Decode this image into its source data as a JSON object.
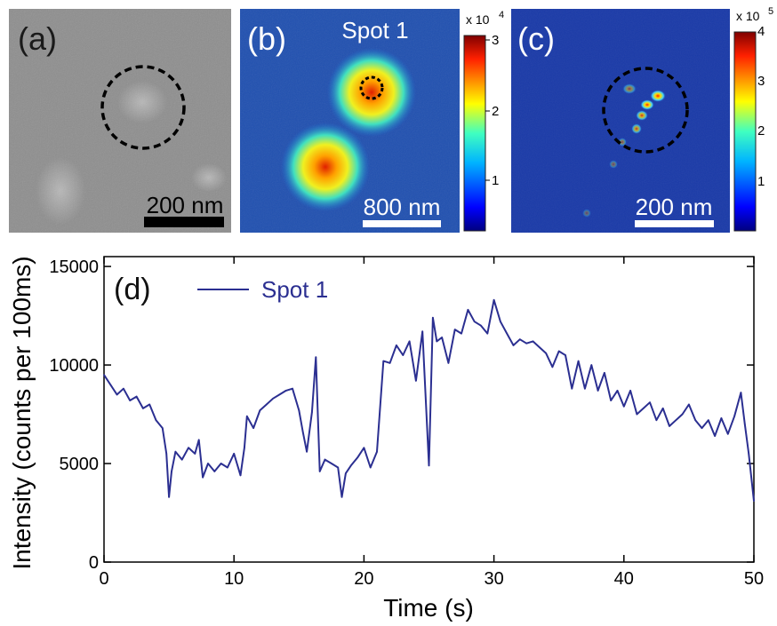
{
  "panels": {
    "a": {
      "label": "(a)",
      "scalebar": "200 nm"
    },
    "b": {
      "label": "(b)",
      "title": "Spot 1",
      "scalebar": "800 nm",
      "colorbar": {
        "exponent_base": "x 10",
        "exponent": "4",
        "ticks": [
          "1",
          "2",
          "3"
        ]
      }
    },
    "c": {
      "label": "(c)",
      "scalebar": "200 nm",
      "colorbar": {
        "exponent_base": "x 10",
        "exponent": "5",
        "ticks": [
          "1",
          "2",
          "3",
          "4"
        ]
      }
    }
  },
  "colors": {
    "trace": "#2b2f91",
    "dashed_circle": "#000000",
    "colormap": "jet"
  },
  "chart_data": {
    "type": "line",
    "panel_label": "(d)",
    "xlabel": "Time (s)",
    "ylabel": "Intensity (counts per 100ms)",
    "xlim": [
      0,
      50
    ],
    "ylim": [
      0,
      15500
    ],
    "xticks": [
      0,
      10,
      20,
      30,
      40,
      50
    ],
    "yticks": [
      0,
      5000,
      10000,
      15000
    ],
    "legend": {
      "placement": "top-left"
    },
    "series": [
      {
        "name": "Spot 1",
        "x": [
          0,
          0.5,
          1,
          1.5,
          2,
          2.5,
          3,
          3.5,
          4,
          4.5,
          4.8,
          5,
          5.2,
          5.5,
          6,
          6.5,
          7,
          7.3,
          7.6,
          8,
          8.5,
          9,
          9.5,
          10,
          10.5,
          10.8,
          11,
          11.5,
          12,
          12.5,
          13,
          13.5,
          14,
          14.5,
          15,
          15.3,
          15.6,
          16,
          16.3,
          16.6,
          17,
          17.5,
          18,
          18.3,
          18.6,
          19,
          19.5,
          20,
          20.5,
          21,
          21.5,
          22,
          22.5,
          23,
          23.5,
          24,
          24.5,
          25,
          25.3,
          25.6,
          26,
          26.5,
          27,
          27.5,
          28,
          28.5,
          29,
          29.5,
          30,
          30.5,
          31,
          31.5,
          32,
          32.5,
          33,
          33.5,
          34,
          34.5,
          35,
          35.5,
          36,
          36.5,
          37,
          37.5,
          38,
          38.5,
          39,
          39.5,
          40,
          40.5,
          41,
          41.5,
          42,
          42.5,
          43,
          43.5,
          44,
          44.5,
          45,
          45.5,
          46,
          46.5,
          47,
          47.5,
          48,
          48.5,
          49,
          49.3,
          49.6,
          50
        ],
        "y": [
          9500,
          9000,
          8500,
          8800,
          8200,
          8400,
          7800,
          8000,
          7200,
          6800,
          5500,
          3300,
          4600,
          5600,
          5200,
          5800,
          5500,
          6200,
          4300,
          5000,
          4600,
          5000,
          4800,
          5500,
          4400,
          5800,
          7400,
          6800,
          7700,
          8000,
          8300,
          8500,
          8700,
          8800,
          7700,
          6600,
          5600,
          7600,
          10400,
          4600,
          5200,
          5000,
          4800,
          3300,
          4500,
          4900,
          5300,
          5800,
          4800,
          5600,
          10200,
          10100,
          11000,
          10500,
          11200,
          9200,
          11700,
          4900,
          12400,
          11200,
          11400,
          10100,
          11800,
          11600,
          12800,
          12200,
          12000,
          11600,
          13300,
          12200,
          11600,
          11000,
          11300,
          11100,
          11200,
          10900,
          10600,
          9900,
          10700,
          10500,
          8800,
          10200,
          8800,
          10000,
          8700,
          9600,
          8200,
          8700,
          7900,
          8700,
          7500,
          7800,
          8100,
          7200,
          7800,
          6900,
          7200,
          7500,
          8000,
          7200,
          6800,
          7200,
          6400,
          7300,
          6500,
          7400,
          8600,
          7000,
          5500,
          3100
        ]
      }
    ]
  }
}
